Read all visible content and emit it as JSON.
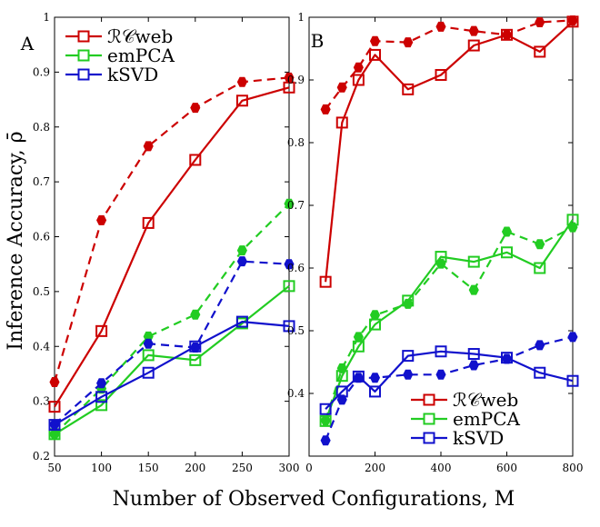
{
  "figure": {
    "xlabel": "Number of Observed Configurations, M",
    "ylabel": "Inference Accuracy, ρ̄"
  },
  "legend": [
    {
      "label": "ℛ𝒞web",
      "color": "#cc0000"
    },
    {
      "label": "emPCA",
      "color": "#22cc22"
    },
    {
      "label": "kSVD",
      "color": "#1111cc"
    }
  ],
  "chart_data": [
    {
      "type": "line",
      "panel_label": "A",
      "xlim": [
        50,
        300
      ],
      "ylim": [
        0.2,
        1.0
      ],
      "x_ticks": [
        "50",
        "100",
        "150",
        "200",
        "250",
        "300"
      ],
      "y_ticks": [
        "0.2",
        "0.3",
        "0.4",
        "0.5",
        "0.6",
        "0.7",
        "0.8",
        "0.9",
        "1"
      ],
      "legend_position": "top-left",
      "series": [
        {
          "name": "ℛ𝒞web",
          "color": "#cc0000",
          "style": "dashed",
          "marker": "filled-circle",
          "x": [
            50,
            100,
            150,
            200,
            250,
            300
          ],
          "values": [
            0.335,
            0.63,
            0.765,
            0.835,
            0.882,
            0.89
          ]
        },
        {
          "name": "ℛ𝒞web",
          "color": "#cc0000",
          "style": "solid",
          "marker": "open-square",
          "x": [
            50,
            100,
            150,
            200,
            250,
            300
          ],
          "values": [
            0.29,
            0.428,
            0.625,
            0.74,
            0.848,
            0.872
          ]
        },
        {
          "name": "emPCA",
          "color": "#22cc22",
          "style": "dashed",
          "marker": "filled-circle",
          "x": [
            50,
            100,
            150,
            200,
            250,
            300
          ],
          "values": [
            0.24,
            0.323,
            0.418,
            0.458,
            0.575,
            0.66
          ]
        },
        {
          "name": "emPCA",
          "color": "#22cc22",
          "style": "solid",
          "marker": "open-square",
          "x": [
            50,
            100,
            150,
            200,
            250,
            300
          ],
          "values": [
            0.24,
            0.293,
            0.384,
            0.375,
            0.442,
            0.51
          ]
        },
        {
          "name": "kSVD",
          "color": "#1111cc",
          "style": "dashed",
          "marker": "filled-circle",
          "x": [
            50,
            100,
            150,
            200,
            250,
            300
          ],
          "values": [
            0.258,
            0.333,
            0.405,
            0.398,
            0.555,
            0.55
          ]
        },
        {
          "name": "kSVD",
          "color": "#1111cc",
          "style": "solid",
          "marker": "open-square",
          "x": [
            50,
            100,
            150,
            200,
            250,
            300
          ],
          "values": [
            0.257,
            0.308,
            0.352,
            0.4,
            0.445,
            0.437
          ]
        }
      ]
    },
    {
      "type": "line",
      "panel_label": "B",
      "xlim": [
        0,
        800
      ],
      "ylim": [
        0.3,
        1.0
      ],
      "x_ticks": [
        "0",
        "200",
        "400",
        "600",
        "800"
      ],
      "y_ticks": [
        "0.4",
        "0.5",
        "0.6",
        "0.7",
        "0.8",
        "0.9",
        "1"
      ],
      "legend_position": "bottom-right",
      "series": [
        {
          "name": "ℛ𝒞web",
          "color": "#cc0000",
          "style": "dashed",
          "marker": "filled-circle",
          "x": [
            50,
            100,
            150,
            200,
            300,
            400,
            500,
            600,
            700,
            800
          ],
          "values": [
            0.853,
            0.888,
            0.92,
            0.962,
            0.96,
            0.985,
            0.978,
            0.972,
            0.992,
            0.995
          ]
        },
        {
          "name": "ℛ𝒞web",
          "color": "#cc0000",
          "style": "solid",
          "marker": "open-square",
          "x": [
            50,
            100,
            150,
            200,
            300,
            400,
            500,
            600,
            700,
            800
          ],
          "values": [
            0.578,
            0.832,
            0.9,
            0.94,
            0.885,
            0.908,
            0.955,
            0.972,
            0.945,
            0.993
          ]
        },
        {
          "name": "emPCA",
          "color": "#22cc22",
          "style": "dashed",
          "marker": "filled-circle",
          "x": [
            50,
            100,
            150,
            200,
            300,
            400,
            500,
            600,
            700,
            800
          ],
          "values": [
            0.357,
            0.44,
            0.49,
            0.525,
            0.543,
            0.607,
            0.565,
            0.658,
            0.638,
            0.665
          ]
        },
        {
          "name": "emPCA",
          "color": "#22cc22",
          "style": "solid",
          "marker": "open-square",
          "x": [
            50,
            100,
            150,
            200,
            300,
            400,
            500,
            600,
            700,
            800
          ],
          "values": [
            0.356,
            0.428,
            0.475,
            0.51,
            0.548,
            0.618,
            0.61,
            0.625,
            0.6,
            0.677
          ]
        },
        {
          "name": "kSVD",
          "color": "#1111cc",
          "style": "dashed",
          "marker": "filled-circle",
          "x": [
            50,
            100,
            150,
            200,
            300,
            400,
            500,
            600,
            700,
            800
          ],
          "values": [
            0.325,
            0.39,
            0.425,
            0.425,
            0.43,
            0.43,
            0.445,
            0.455,
            0.477,
            0.49
          ]
        },
        {
          "name": "kSVD",
          "color": "#1111cc",
          "style": "solid",
          "marker": "open-square",
          "x": [
            50,
            100,
            150,
            200,
            300,
            400,
            500,
            600,
            700,
            800
          ],
          "values": [
            0.375,
            0.403,
            0.427,
            0.403,
            0.46,
            0.467,
            0.463,
            0.457,
            0.433,
            0.42
          ]
        }
      ]
    }
  ]
}
